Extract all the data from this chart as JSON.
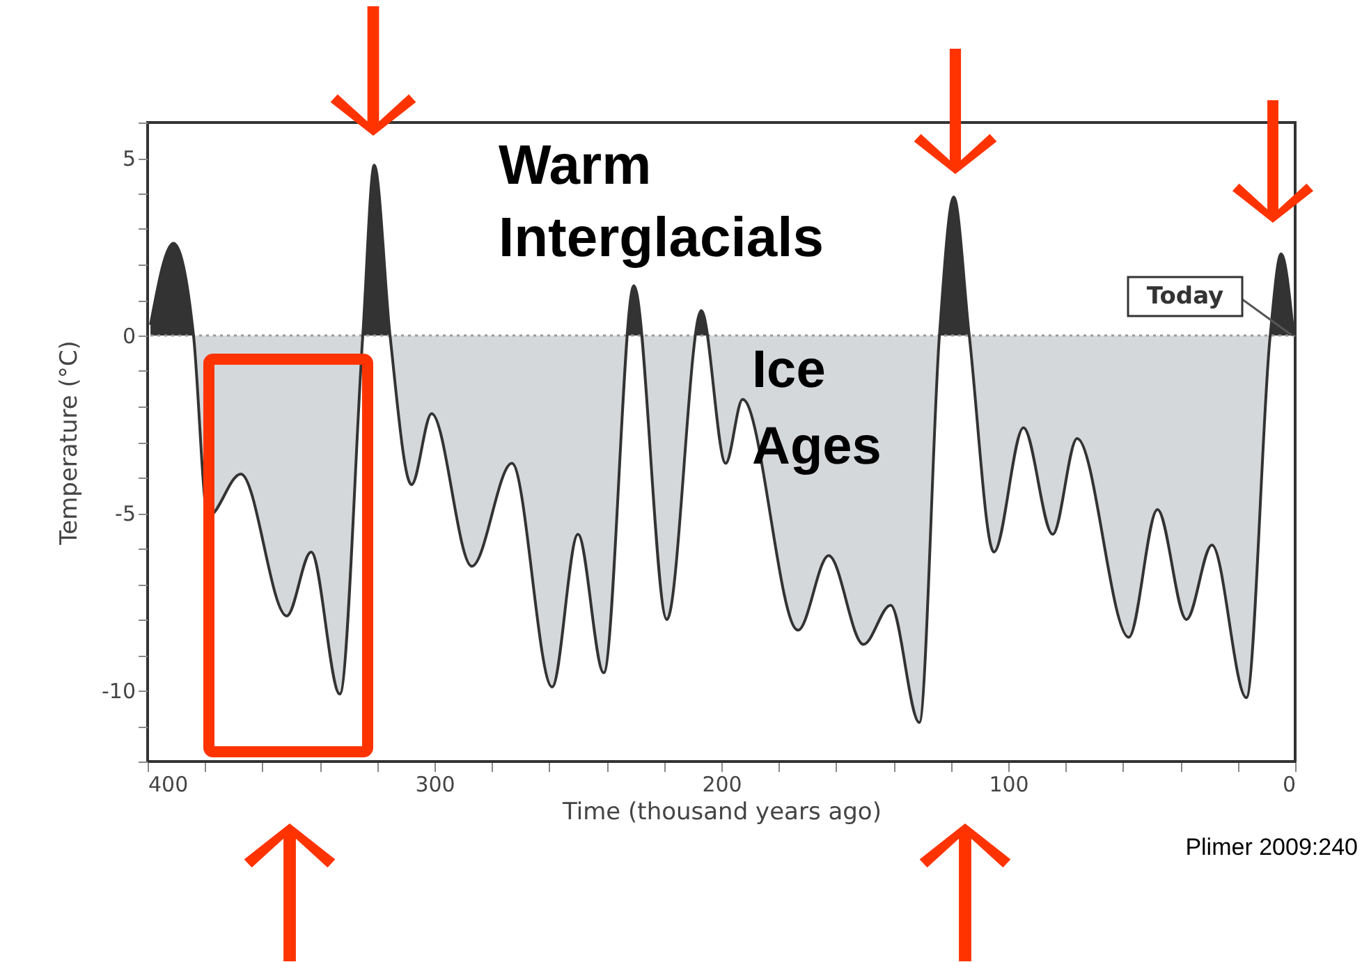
{
  "chart_data": {
    "type": "area",
    "xlabel": "Time (thousand years ago)",
    "ylabel": "Temperature (°C)",
    "x": [
      399,
      391,
      384,
      379,
      367.5,
      351.5,
      343,
      333,
      325,
      321,
      315.5,
      308,
      301,
      287,
      273,
      259,
      250,
      241,
      230.5,
      219,
      207,
      198.5,
      192.6,
      173.3,
      162.6,
      150.5,
      141,
      131,
      124,
      119,
      113.6,
      105,
      94.7,
      84.5,
      76,
      58,
      48,
      37.9,
      29,
      17,
      8.7,
      4.9,
      0.5
    ],
    "series": [
      {
        "color": "#333333",
        "values": [
          0.3,
          2.6,
          0,
          -5.1,
          -3.9,
          -7.9,
          -6.1,
          -10.1,
          0,
          4.8,
          0,
          -4.2,
          -2.2,
          -6.5,
          -3.6,
          -9.9,
          -5.6,
          -9.5,
          1.4,
          -8.0,
          0.7,
          -3.6,
          -1.8,
          -8.3,
          -6.2,
          -8.7,
          -7.6,
          -10.9,
          0,
          3.9,
          0,
          -6.1,
          -2.6,
          -5.6,
          -2.9,
          -8.5,
          -4.9,
          -8.0,
          -5.9,
          -10.2,
          0,
          2.3,
          0
        ]
      }
    ],
    "xlim": [
      400,
      0
    ],
    "xticks": [
      400,
      {
        "value": 380,
        "label": null
      },
      {
        "value": 360,
        "label": null
      },
      {
        "value": 340,
        "label": null
      },
      {
        "value": 320,
        "label": null
      },
      300,
      {
        "value": 280,
        "label": null
      },
      {
        "value": 260,
        "label": null
      },
      {
        "value": 240,
        "label": null
      },
      {
        "value": 220,
        "label": null
      },
      200,
      {
        "value": 180,
        "label": null
      },
      {
        "value": 160,
        "label": null
      },
      {
        "value": 140,
        "label": null
      },
      {
        "value": 120,
        "label": null
      },
      100,
      {
        "value": 80,
        "label": null
      },
      {
        "value": 60,
        "label": null
      },
      {
        "value": 40,
        "label": null
      },
      {
        "value": 20,
        "label": null
      },
      0
    ],
    "ylim": [
      -12,
      6
    ],
    "yticks": [
      {
        "value": -12,
        "label": null
      },
      {
        "value": -11,
        "label": null
      },
      -10,
      {
        "value": -9,
        "label": null
      },
      {
        "value": -8,
        "label": null
      },
      {
        "value": -7,
        "label": null
      },
      {
        "value": -6,
        "label": null
      },
      -5,
      {
        "value": -4,
        "label": null
      },
      {
        "value": -3,
        "label": null
      },
      {
        "value": -2,
        "label": null
      },
      {
        "value": -1,
        "label": null
      },
      0,
      {
        "value": 1,
        "label": null
      },
      {
        "value": 2,
        "label": null
      },
      {
        "value": 3,
        "label": null
      },
      {
        "value": 4,
        "label": null
      },
      5,
      {
        "value": 6,
        "label": null
      }
    ],
    "ref_lines": [
      {
        "axis": "y",
        "value": 0,
        "color": "#999999",
        "line_style": "dotted"
      }
    ],
    "annotations": [
      "Warm Interglacials",
      "Ice Ages",
      {
        "text": "Today",
        "x": 1,
        "y": 0
      },
      "Plimer 2009:240"
    ],
    "grid": false
  }
}
